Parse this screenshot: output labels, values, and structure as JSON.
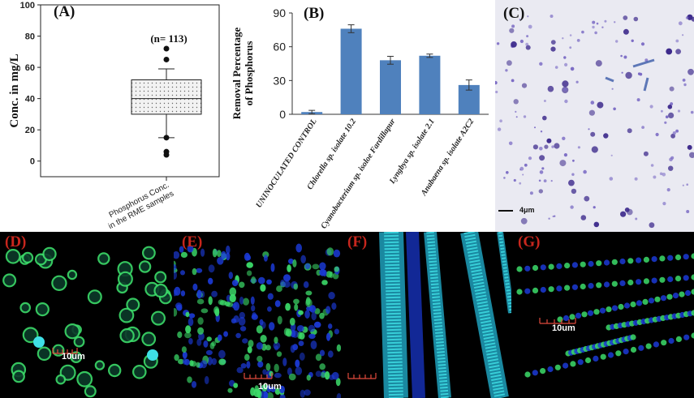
{
  "panels": {
    "a": "(A)",
    "b": "(B)",
    "c": "(C)",
    "d": "(D)",
    "e": "(E)",
    "f": "(F)",
    "g": "(G)"
  },
  "colors": {
    "bar": "#4f81bd",
    "box_fill": "#f2f2f2",
    "panel_tag_dark": "#c8261d",
    "micro_bg": "#000000",
    "stain_purple": "#3d2a8c",
    "fluor_green": "#3cdc6a",
    "fluor_blue": "#1b3ad6",
    "fluor_cyan": "#3fe0e6"
  },
  "chart_data": [
    {
      "type": "box",
      "panel": "(A)",
      "ylabel": "Conc. in mg/L",
      "ylim": [
        -10,
        100
      ],
      "yticks": [
        "0",
        "20",
        "40",
        "60",
        "80",
        "100"
      ],
      "category": "Phosphorus Conc. in the RME samples",
      "category_lines": [
        "Phosphorus Conc.",
        "in the RME samples"
      ],
      "n_label": "(n= 113)",
      "q1": 30,
      "median": 40,
      "q3": 52,
      "whisker_low": 15,
      "whisker_high": 59,
      "outliers": [
        72,
        65,
        6,
        4
      ],
      "grid": false
    },
    {
      "type": "bar",
      "panel": "(B)",
      "ylabel": "Removal Percentage of Phosphorus",
      "ylabel_lines": [
        "Removal Percentage",
        "of Phosphorus"
      ],
      "ylim": [
        0,
        90
      ],
      "yticks": [
        "0",
        "30",
        "60",
        "90"
      ],
      "categories": [
        "UNINOCULATED CONTROL",
        "Chlorella sp. isolate 10.2",
        "Cyanobacterium sp. isoloe Fardillapur",
        "Lyngbya sp. isolate 2.1",
        "Anabaena sp. isolate A2C2"
      ],
      "values": [
        2,
        76,
        48,
        52,
        26
      ],
      "errors": [
        1.5,
        3.5,
        3.5,
        1.5,
        4.5
      ],
      "grid": false
    }
  ],
  "micrographs": {
    "c_scale": "4μm",
    "d_scale": "10um",
    "e_scale": "10um",
    "g_scale": "10um"
  }
}
